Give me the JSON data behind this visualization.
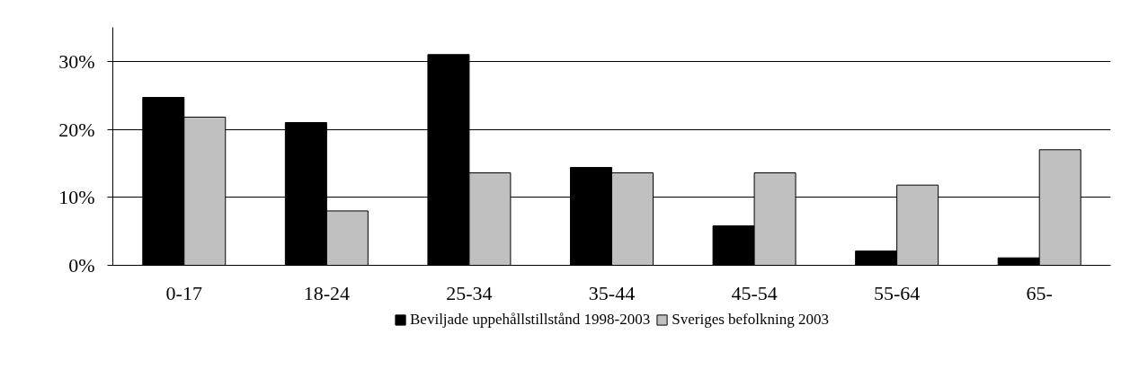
{
  "chart_data": {
    "type": "bar",
    "categories": [
      "0-17",
      "18-24",
      "25-34",
      "35-44",
      "45-54",
      "55-64",
      "65-"
    ],
    "series": [
      {
        "name": "Beviljade uppehållstillstånd 1998-2003",
        "color": "#000000",
        "values": [
          24.7,
          21.0,
          31.0,
          14.4,
          5.8,
          2.1,
          1.1
        ]
      },
      {
        "name": "Sveriges befolkning 2003",
        "color": "#c0c0c0",
        "values": [
          21.8,
          8.0,
          13.6,
          13.6,
          13.6,
          11.8,
          17.0
        ]
      }
    ],
    "ylim": [
      0,
      35
    ],
    "yticks": [
      {
        "value": 0,
        "label": "0%"
      },
      {
        "value": 10,
        "label": "10%"
      },
      {
        "value": 20,
        "label": "20%"
      },
      {
        "value": 30,
        "label": "30%"
      }
    ],
    "grid": "y",
    "legend": "bottom"
  }
}
